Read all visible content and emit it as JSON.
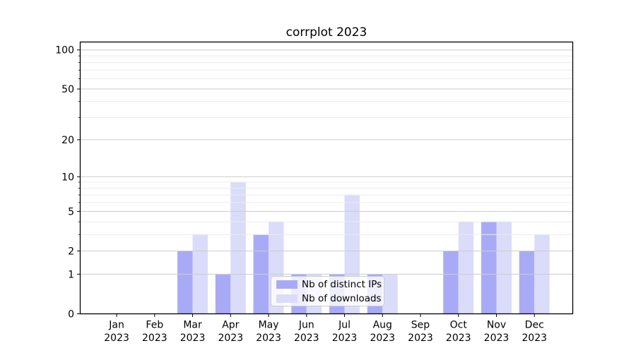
{
  "title": "corrplot 2023",
  "colors": {
    "ips_bar": "#a9aaf6",
    "downloads_bar": "#dadcf9",
    "grid_major": "#cccccc",
    "grid_minor": "#ececec",
    "axis": "#000000",
    "background": "#ffffff",
    "legend_border": "#cccccc"
  },
  "legend": {
    "items": [
      {
        "label": "Nb of distinct IPs",
        "series": "ips"
      },
      {
        "label": "Nb of downloads",
        "series": "downloads"
      }
    ],
    "position": "lower center"
  },
  "chart_data": {
    "type": "bar",
    "title": "corrplot 2023",
    "categories": [
      "Jan 2023",
      "Feb 2023",
      "Mar 2023",
      "Apr 2023",
      "May 2023",
      "Jun 2023",
      "Jul 2023",
      "Aug 2023",
      "Sep 2023",
      "Oct 2023",
      "Nov 2023",
      "Dec 2023"
    ],
    "series": [
      {
        "name": "Nb of distinct IPs",
        "color": "#a9aaf6",
        "values": [
          0,
          0,
          2,
          1,
          3,
          1,
          1,
          1,
          0,
          2,
          4,
          2
        ]
      },
      {
        "name": "Nb of downloads",
        "color": "#dadcf9",
        "values": [
          0,
          0,
          3,
          9,
          4,
          1,
          7,
          1,
          0,
          4,
          4,
          3
        ]
      }
    ],
    "yscale": "log1p",
    "ylim": [
      0,
      115
    ],
    "xlim": [
      -0.96,
      12.01
    ],
    "y_major_ticks": [
      0,
      1,
      2,
      5,
      10,
      20,
      50,
      100
    ],
    "y_minor_ticks": [
      3,
      4,
      6,
      7,
      8,
      9,
      30,
      40,
      60,
      70,
      80,
      90
    ],
    "grid": true,
    "grid_above_bars": true,
    "bar_width_units": 0.4,
    "legend_position": "lower center",
    "xlabel": "",
    "ylabel": ""
  }
}
